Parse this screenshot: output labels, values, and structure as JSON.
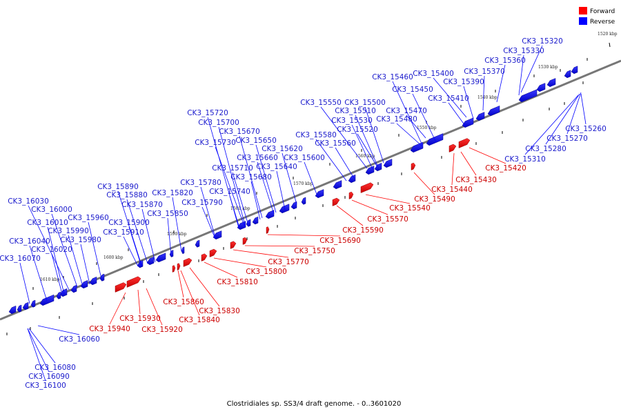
{
  "title": "Clostridiales sp. SS3/4 draft genome. - 0..3601020",
  "legend": [
    {
      "label": "Forward",
      "color": "#ff0000"
    },
    {
      "label": "Reverse",
      "color": "#0000ff"
    }
  ],
  "axis": {
    "ticks": [
      "1520 kbp",
      "1530 kbp",
      "1540 kbp",
      "1550 kbp",
      "1560 kbp",
      "1570 kbp",
      "1580 kbp",
      "1590 kbp",
      "1600 kbp",
      "1610 kbp"
    ]
  },
  "genes": [
    {
      "name": "CK3_15320",
      "strand": "reverse"
    },
    {
      "name": "CK3_15330",
      "strand": "reverse"
    },
    {
      "name": "CK3_15360",
      "strand": "reverse"
    },
    {
      "name": "CK3_15370",
      "strand": "reverse"
    },
    {
      "name": "CK3_15390",
      "strand": "reverse"
    },
    {
      "name": "CK3_15400",
      "strand": "reverse"
    },
    {
      "name": "CK3_15460",
      "strand": "reverse"
    },
    {
      "name": "CK3_15450",
      "strand": "reverse"
    },
    {
      "name": "CK3_15410",
      "strand": "reverse"
    },
    {
      "name": "CK3_15500",
      "strand": "reverse"
    },
    {
      "name": "CK3_15550",
      "strand": "reverse"
    },
    {
      "name": "CK3_15470",
      "strand": "reverse"
    },
    {
      "name": "CK3_15510",
      "strand": "reverse"
    },
    {
      "name": "CK3_15480",
      "strand": "reverse"
    },
    {
      "name": "CK3_15530",
      "strand": "reverse"
    },
    {
      "name": "CK3_15520",
      "strand": "reverse"
    },
    {
      "name": "CK3_15580",
      "strand": "reverse"
    },
    {
      "name": "CK3_15560",
      "strand": "reverse"
    },
    {
      "name": "CK3_15720",
      "strand": "reverse"
    },
    {
      "name": "CK3_15700",
      "strand": "reverse"
    },
    {
      "name": "CK3_15670",
      "strand": "reverse"
    },
    {
      "name": "CK3_15650",
      "strand": "reverse"
    },
    {
      "name": "CK3_15730",
      "strand": "reverse"
    },
    {
      "name": "CK3_15620",
      "strand": "reverse"
    },
    {
      "name": "CK3_15660",
      "strand": "reverse"
    },
    {
      "name": "CK3_15600",
      "strand": "reverse"
    },
    {
      "name": "CK3_15640",
      "strand": "reverse"
    },
    {
      "name": "CK3_15710",
      "strand": "reverse"
    },
    {
      "name": "CK3_15680",
      "strand": "reverse"
    },
    {
      "name": "CK3_15780",
      "strand": "reverse"
    },
    {
      "name": "CK3_15740",
      "strand": "reverse"
    },
    {
      "name": "CK3_15890",
      "strand": "reverse"
    },
    {
      "name": "CK3_15820",
      "strand": "reverse"
    },
    {
      "name": "CK3_15880",
      "strand": "reverse"
    },
    {
      "name": "CK3_15790",
      "strand": "reverse"
    },
    {
      "name": "CK3_15870",
      "strand": "reverse"
    },
    {
      "name": "CK3_15850",
      "strand": "reverse"
    },
    {
      "name": "CK3_15900",
      "strand": "reverse"
    },
    {
      "name": "CK3_15910",
      "strand": "reverse"
    },
    {
      "name": "CK3_16030",
      "strand": "reverse"
    },
    {
      "name": "CK3_16000",
      "strand": "reverse"
    },
    {
      "name": "CK3_15960",
      "strand": "reverse"
    },
    {
      "name": "CK3_16010",
      "strand": "reverse"
    },
    {
      "name": "CK3_15990",
      "strand": "reverse"
    },
    {
      "name": "CK3_15980",
      "strand": "reverse"
    },
    {
      "name": "CK3_16040",
      "strand": "reverse"
    },
    {
      "name": "CK3_16020",
      "strand": "reverse"
    },
    {
      "name": "CK3_16070",
      "strand": "reverse"
    },
    {
      "name": "CK3_16060",
      "strand": "reverse"
    },
    {
      "name": "CK3_16080",
      "strand": "reverse"
    },
    {
      "name": "CK3_16090",
      "strand": "reverse"
    },
    {
      "name": "CK3_16100",
      "strand": "reverse"
    },
    {
      "name": "CK3_15260",
      "strand": "reverse"
    },
    {
      "name": "CK3_15270",
      "strand": "reverse"
    },
    {
      "name": "CK3_15280",
      "strand": "reverse"
    },
    {
      "name": "CK3_15310",
      "strand": "reverse"
    },
    {
      "name": "CK3_15420",
      "strand": "forward"
    },
    {
      "name": "CK3_15430",
      "strand": "forward"
    },
    {
      "name": "CK3_15440",
      "strand": "forward"
    },
    {
      "name": "CK3_15490",
      "strand": "forward"
    },
    {
      "name": "CK3_15540",
      "strand": "forward"
    },
    {
      "name": "CK3_15570",
      "strand": "forward"
    },
    {
      "name": "CK3_15590",
      "strand": "forward"
    },
    {
      "name": "CK3_15690",
      "strand": "forward"
    },
    {
      "name": "CK3_15750",
      "strand": "forward"
    },
    {
      "name": "CK3_15770",
      "strand": "forward"
    },
    {
      "name": "CK3_15800",
      "strand": "forward"
    },
    {
      "name": "CK3_15810",
      "strand": "forward"
    },
    {
      "name": "CK3_15830",
      "strand": "forward"
    },
    {
      "name": "CK3_15860",
      "strand": "forward"
    },
    {
      "name": "CK3_15840",
      "strand": "forward"
    },
    {
      "name": "CK3_15930",
      "strand": "forward"
    },
    {
      "name": "CK3_15940",
      "strand": "forward"
    },
    {
      "name": "CK3_15920",
      "strand": "forward"
    }
  ]
}
